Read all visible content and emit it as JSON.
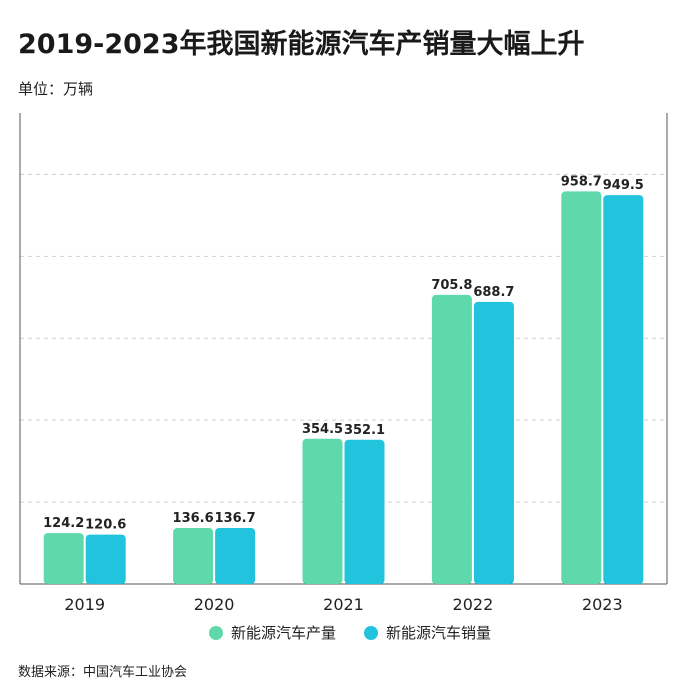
{
  "title": "2019-2023年我国新能源汽车产销量大幅上升",
  "unit_label": "单位：万辆",
  "source": "数据来源：中国汽车工业协会",
  "colors": {
    "production": "#5fd9ab",
    "sales": "#22c3dc",
    "grid": "#d0d0d0",
    "axis": "#555555"
  },
  "chart_data": {
    "type": "bar",
    "title": "2019-2023年我国新能源汽车产销量大幅上升",
    "ylabel": "万辆",
    "xlabel": "",
    "ylim": [
      0,
      1150
    ],
    "grid": true,
    "legend_position": "bottom-center",
    "categories": [
      "2019",
      "2020",
      "2021",
      "2022",
      "2023"
    ],
    "series": [
      {
        "name": "新能源汽车产量",
        "values": [
          124.2,
          136.6,
          354.5,
          705.8,
          958.7
        ]
      },
      {
        "name": "新能源汽车销量",
        "values": [
          120.6,
          136.7,
          352.1,
          688.7,
          949.5
        ]
      }
    ],
    "data_labels": [
      [
        "124.2",
        "136.6",
        "354.5",
        "705.8",
        "958.7"
      ],
      [
        "120.6",
        "136.7",
        "352.1",
        "688.7",
        "949.5"
      ]
    ]
  }
}
